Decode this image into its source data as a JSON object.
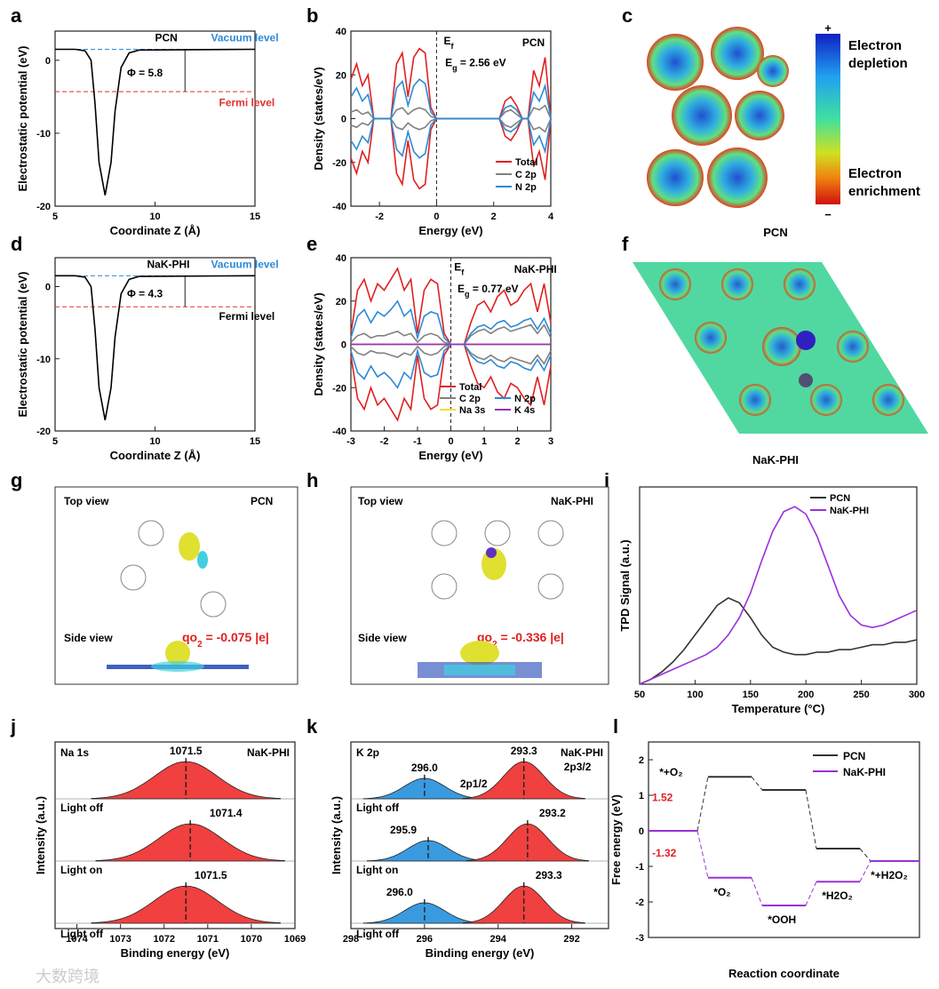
{
  "panel_letters": [
    "a",
    "b",
    "c",
    "d",
    "e",
    "f",
    "g",
    "h",
    "i",
    "j",
    "k",
    "l"
  ],
  "panel_c": {
    "caption": "PCN",
    "colorbar_plus": "+",
    "colorbar_minus": "−",
    "depletion_1": "Electron",
    "depletion_2": "depletion",
    "enrichment_1": "Electron",
    "enrichment_2": "enrichment"
  },
  "panel_f": {
    "caption": "NaK-PHI"
  },
  "panel_g": {
    "top": "Top view",
    "side": "Side view",
    "name": "PCN",
    "charge_label": "qo",
    "charge_sub": "2",
    "charge_value": " = -0.075 |e|"
  },
  "panel_h": {
    "top": "Top view",
    "side": "Side view",
    "name": "NaK-PHI",
    "charge_label": "qo",
    "charge_sub": "2",
    "charge_value": " = -0.336 |e|"
  },
  "watermark": "大数跨境",
  "colors": {
    "total": "#e02020",
    "c2p": "#808080",
    "n2p": "#2a8ad8",
    "na3s": "#f2e030",
    "k4s": "#9a30c0",
    "pcn": "#333333",
    "nak": "#9b30d9",
    "vac": "#2a8ad8",
    "fermi": "#e03030",
    "fill_red": "#f04040",
    "fill_blue": "#3a9ae0"
  },
  "chart_data": [
    {
      "id": "a",
      "type": "line",
      "xlabel": "Coordinate Z (Å)",
      "ylabel": "Electrostatic potential (eV)",
      "xlim": [
        5,
        15
      ],
      "ylim": [
        -20,
        4
      ],
      "xticks": [
        5,
        10,
        15
      ],
      "yticks": [
        0,
        -10,
        -20
      ],
      "series": [
        {
          "name": "PCN",
          "x": [
            5,
            6,
            6.5,
            6.8,
            7,
            7.2,
            7.5,
            7.8,
            8,
            8.3,
            8.7,
            9.2,
            15
          ],
          "y": [
            1.5,
            1.5,
            1.3,
            0,
            -6,
            -14,
            -18.5,
            -14,
            -7,
            -1,
            1,
            1.4,
            1.5
          ]
        }
      ],
      "vacuum_level": 1.5,
      "fermi_level": -4.3,
      "annotations": [
        {
          "text": "PCN",
          "x": 10,
          "y": 2.6
        },
        {
          "text": "Vacuum level",
          "x": 12.8,
          "y": 2.6,
          "color": "vac"
        },
        {
          "text": "Fermi level",
          "x": 13.2,
          "y": -6.3,
          "color": "fermi"
        },
        {
          "text": "Φ = 5.8",
          "x": 8.6,
          "y": -2.2
        }
      ]
    },
    {
      "id": "b",
      "type": "line",
      "xlabel": "Energy (eV)",
      "ylabel": "Density (states/eV)",
      "xlim": [
        -3,
        4
      ],
      "ylim": [
        -40,
        40
      ],
      "xticks": [
        -2,
        0,
        2,
        4
      ],
      "yticks": [
        40,
        20,
        0,
        -20,
        -40
      ],
      "mirror": true,
      "x": [
        -3,
        -2.8,
        -2.6,
        -2.4,
        -2.2,
        -2,
        -1.8,
        -1.6,
        -1.4,
        -1.2,
        -1,
        -0.8,
        -0.6,
        -0.4,
        -0.2,
        0,
        0.5,
        1,
        1.5,
        2,
        2.2,
        2.4,
        2.6,
        2.8,
        3,
        3.2,
        3.4,
        3.6,
        3.8,
        4
      ],
      "series": [
        {
          "name": "Total",
          "color": "total",
          "values": [
            18,
            25,
            15,
            20,
            0,
            0,
            0,
            0,
            25,
            30,
            10,
            28,
            32,
            30,
            5,
            0,
            0,
            0,
            0,
            0,
            0,
            8,
            10,
            6,
            0,
            0,
            22,
            15,
            28,
            0
          ]
        },
        {
          "name": "C 2p",
          "color": "c2p",
          "values": [
            3,
            4,
            2,
            3,
            0,
            0,
            0,
            0,
            4,
            5,
            2,
            4,
            5,
            4,
            1,
            0,
            0,
            0,
            0,
            0,
            0,
            3,
            4,
            2,
            0,
            0,
            5,
            4,
            6,
            0
          ]
        },
        {
          "name": "N 2p",
          "color": "n2p",
          "values": [
            10,
            14,
            8,
            11,
            0,
            0,
            0,
            0,
            14,
            17,
            6,
            15,
            18,
            16,
            3,
            0,
            0,
            0,
            0,
            0,
            0,
            5,
            6,
            4,
            0,
            0,
            12,
            8,
            15,
            0
          ]
        }
      ],
      "annotations": [
        {
          "text": "PCN",
          "x": 3,
          "y": 33
        },
        {
          "text": "E_f",
          "x": 0.25,
          "y": 34
        },
        {
          "text": "E_g = 2.56 eV",
          "x": 0.3,
          "y": 24
        }
      ]
    },
    {
      "id": "d",
      "type": "line",
      "xlabel": "Coordinate Z (Å)",
      "ylabel": "Electrostatic potential (eV)",
      "xlim": [
        5,
        15
      ],
      "ylim": [
        -20,
        4
      ],
      "xticks": [
        5,
        10,
        15
      ],
      "yticks": [
        0,
        -10,
        -20
      ],
      "series": [
        {
          "name": "NaK-PHI",
          "x": [
            5,
            6,
            6.5,
            6.8,
            7,
            7.2,
            7.5,
            7.8,
            8,
            8.3,
            8.7,
            9.2,
            15
          ],
          "y": [
            1.5,
            1.5,
            1.3,
            0,
            -6,
            -14,
            -18.5,
            -14,
            -7,
            -1,
            1,
            1.4,
            1.5
          ]
        }
      ],
      "vacuum_level": 1.5,
      "fermi_level": -2.8,
      "annotations": [
        {
          "text": "NaK-PHI",
          "x": 9.6,
          "y": 2.6
        },
        {
          "text": "Vacuum level",
          "x": 12.8,
          "y": 2.6,
          "color": "vac"
        },
        {
          "text": "Fermi level",
          "x": 13.2,
          "y": -4.6
        },
        {
          "text": "Φ = 4.3",
          "x": 8.6,
          "y": -1.5
        }
      ]
    },
    {
      "id": "e",
      "type": "line",
      "xlabel": "Energy (eV)",
      "ylabel": "Density (states/eV)",
      "xlim": [
        -3,
        3
      ],
      "ylim": [
        -40,
        40
      ],
      "xticks": [
        -3,
        -2,
        -1,
        0,
        1,
        2,
        3
      ],
      "yticks": [
        40,
        20,
        0,
        -20,
        -40
      ],
      "mirror": true,
      "x": [
        -3,
        -2.8,
        -2.6,
        -2.4,
        -2.2,
        -2,
        -1.8,
        -1.6,
        -1.4,
        -1.2,
        -1,
        -0.8,
        -0.6,
        -0.4,
        -0.2,
        0,
        0.2,
        0.4,
        0.6,
        0.8,
        1,
        1.2,
        1.4,
        1.6,
        1.8,
        2,
        2.2,
        2.4,
        2.6,
        2.8,
        3
      ],
      "series": [
        {
          "name": "Total",
          "color": "total",
          "values": [
            5,
            25,
            30,
            20,
            28,
            25,
            30,
            35,
            25,
            30,
            5,
            25,
            30,
            28,
            5,
            0,
            0,
            0,
            10,
            18,
            20,
            15,
            22,
            25,
            18,
            20,
            25,
            28,
            15,
            28,
            10
          ]
        },
        {
          "name": "C 2p",
          "color": "c2p",
          "values": [
            1,
            4,
            5,
            3,
            4,
            4,
            5,
            6,
            4,
            5,
            1,
            4,
            5,
            4,
            1,
            0,
            0,
            0,
            4,
            6,
            7,
            5,
            7,
            8,
            6,
            7,
            8,
            9,
            5,
            9,
            3
          ]
        },
        {
          "name": "N 2p",
          "color": "n2p",
          "values": [
            3,
            13,
            16,
            10,
            15,
            13,
            16,
            20,
            13,
            16,
            3,
            13,
            15,
            14,
            3,
            0,
            0,
            0,
            5,
            8,
            9,
            7,
            10,
            11,
            8,
            9,
            11,
            12,
            7,
            12,
            5
          ]
        },
        {
          "name": "Na 3s",
          "color": "na3s",
          "values": [
            0,
            0,
            0,
            0,
            0,
            0,
            0,
            0,
            0,
            0,
            0,
            0,
            0,
            0,
            0,
            0,
            0,
            0,
            0,
            0,
            0,
            0,
            0,
            0,
            0,
            0,
            0,
            0,
            0,
            0,
            0
          ]
        },
        {
          "name": "K 4s",
          "color": "k4s",
          "values": [
            0,
            0,
            0,
            0,
            0,
            0,
            0,
            0,
            0,
            0,
            0,
            0,
            0,
            0,
            0,
            0,
            0,
            0,
            0,
            0,
            0,
            0,
            0,
            0,
            0,
            0,
            0,
            0,
            0,
            0,
            0
          ]
        }
      ],
      "annotations": [
        {
          "text": "NaK-PHI",
          "x": 1.9,
          "y": 33
        },
        {
          "text": "E_f",
          "x": 0.1,
          "y": 34
        },
        {
          "text": "E_g = 0.77 eV",
          "x": 0.2,
          "y": 24
        }
      ]
    },
    {
      "id": "i",
      "type": "line",
      "xlabel": "Temperature (°C)",
      "ylabel": "TPD Signal (a.u.)",
      "xlim": [
        50,
        300
      ],
      "ylim": [
        0,
        0.8
      ],
      "xticks": [
        50,
        100,
        150,
        200,
        250,
        300
      ],
      "yticks": [],
      "x": [
        50,
        60,
        70,
        80,
        90,
        100,
        110,
        120,
        130,
        140,
        150,
        160,
        170,
        180,
        190,
        200,
        210,
        220,
        230,
        240,
        250,
        260,
        270,
        280,
        290,
        300
      ],
      "series": [
        {
          "name": "PCN",
          "color": "pcn",
          "values": [
            0,
            0.02,
            0.05,
            0.09,
            0.14,
            0.2,
            0.26,
            0.32,
            0.35,
            0.33,
            0.27,
            0.2,
            0.15,
            0.13,
            0.12,
            0.12,
            0.13,
            0.13,
            0.14,
            0.14,
            0.15,
            0.16,
            0.16,
            0.17,
            0.17,
            0.18
          ]
        },
        {
          "name": "NaK-PHI",
          "color": "nak",
          "values": [
            0,
            0.02,
            0.04,
            0.06,
            0.08,
            0.1,
            0.12,
            0.15,
            0.2,
            0.27,
            0.37,
            0.5,
            0.62,
            0.7,
            0.72,
            0.69,
            0.6,
            0.48,
            0.36,
            0.28,
            0.24,
            0.23,
            0.24,
            0.26,
            0.28,
            0.3
          ]
        }
      ],
      "legend": "top-right"
    },
    {
      "id": "j",
      "type": "spectra",
      "xlabel": "Binding energy (eV)",
      "ylabel": "Intensity (a.u.)",
      "xlim": [
        1074.5,
        1069
      ],
      "xticks": [
        1074,
        1073,
        1072,
        1071,
        1070,
        1069
      ],
      "title_left": "Na 1s",
      "title_right": "NaK-PHI",
      "spectra": [
        {
          "label": "Light off",
          "peaks": [
            {
              "center": 1071.5,
              "label": "1071.5",
              "fill": "fill_red"
            }
          ]
        },
        {
          "label": "Light on",
          "peaks": [
            {
              "center": 1071.4,
              "label": "1071.4",
              "fill": "fill_red"
            }
          ]
        },
        {
          "label": "Light off",
          "peaks": [
            {
              "center": 1071.5,
              "label": "1071.5",
              "fill": "fill_red"
            }
          ]
        }
      ],
      "fwhm": 1.7
    },
    {
      "id": "k",
      "type": "spectra",
      "xlabel": "Binding energy (eV)",
      "ylabel": "Intensity (a.u.)",
      "xlim": [
        298,
        291
      ],
      "xticks": [
        298,
        296,
        294,
        292
      ],
      "title_left": "K 2p",
      "title_right": "NaK-PHI",
      "peak_names": [
        "2p1/2",
        "2p3/2"
      ],
      "spectra": [
        {
          "label": "Light off",
          "peaks": [
            {
              "center": 296.0,
              "label": "296.0",
              "fill": "fill_blue",
              "h": 0.55
            },
            {
              "center": 293.3,
              "label": "293.3",
              "fill": "fill_red",
              "h": 1
            }
          ]
        },
        {
          "label": "Light on",
          "peaks": [
            {
              "center": 295.9,
              "label": "295.9",
              "fill": "fill_blue",
              "h": 0.55
            },
            {
              "center": 293.2,
              "label": "293.2",
              "fill": "fill_red",
              "h": 1
            }
          ]
        },
        {
          "label": "Light off",
          "peaks": [
            {
              "center": 296.0,
              "label": "296.0",
              "fill": "fill_blue",
              "h": 0.55
            },
            {
              "center": 293.3,
              "label": "293.3",
              "fill": "fill_red",
              "h": 1
            }
          ]
        }
      ],
      "fwhm": 1.3
    },
    {
      "id": "l",
      "type": "energy_diagram",
      "xlabel": "Reaction coordinate",
      "ylabel": "Free energy (eV)",
      "ylim": [
        -3,
        2.5
      ],
      "yticks": [
        2,
        1,
        0,
        -1,
        -2,
        -3
      ],
      "steps": [
        "*+O2",
        "*O2",
        "*OOH",
        "*H2O2",
        "*+H2O2"
      ],
      "series": [
        {
          "name": "PCN",
          "color": "pcn",
          "values": [
            0,
            1.52,
            1.15,
            -0.5,
            -0.85
          ]
        },
        {
          "name": "NaK-PHI",
          "color": "nak",
          "values": [
            0,
            -1.32,
            -2.1,
            -1.43,
            -0.85
          ]
        }
      ],
      "annotations": [
        {
          "text": "1.52",
          "step": 1,
          "series": 0
        },
        {
          "text": "-1.32",
          "step": 1,
          "series": 1
        }
      ],
      "legend": "top-right"
    }
  ]
}
